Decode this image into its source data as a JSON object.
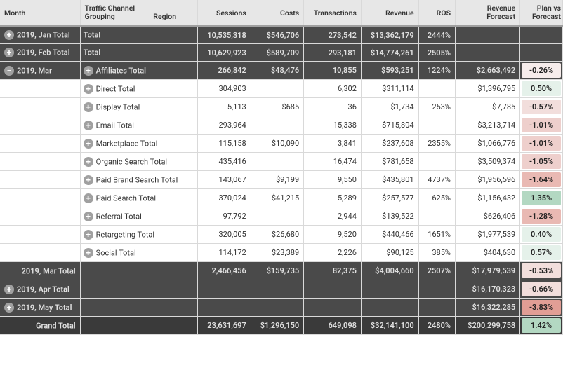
{
  "type": "table",
  "colors": {
    "header_bg": "#e7e7e7",
    "dark_row_bg": "#4a4a4a",
    "dark_row_text": "#e0e0e0",
    "grand_row_bg": "#3a3a3a",
    "border": "#d9d9d9",
    "icon_bg": "#a0a0a0"
  },
  "planfc_palette": {
    "neg_weakest": "#f6eceb",
    "neg_weak": "#f2dedc",
    "neg_med": "#eecfcc",
    "neg_strong": "#e9b9b3",
    "neg_strongest": "#e19e95",
    "pos_weak": "#e5f1ea",
    "pos_med": "#c9e3d3",
    "pos_strong": "#b3d8c2"
  },
  "headers": {
    "month": "Month",
    "channel": "Traffic Channel Grouping",
    "region": "Region",
    "sessions": "Sessions",
    "costs": "Costs",
    "transactions": "Transactions",
    "revenue": "Revenue",
    "ros": "ROS",
    "rev_forecast": "Revenue Forecast",
    "plan_forecast": "Plan vs Forecast"
  },
  "rows": [
    {
      "kind": "dark",
      "icon": "plus",
      "month": "2019, Jan   Total",
      "channel": "Total",
      "sessions": "10,535,318",
      "costs": "$546,706",
      "transactions": "273,542",
      "revenue": "$13,362,179",
      "ros": "2444%",
      "rev_fc": "",
      "plan_fc": "",
      "plan_color": ""
    },
    {
      "kind": "dark",
      "icon": "plus",
      "month": "2019, Feb   Total",
      "channel": "Total",
      "sessions": "10,629,923",
      "costs": "$589,709",
      "transactions": "293,181",
      "revenue": "$14,774,261",
      "ros": "2505%",
      "rev_fc": "",
      "plan_fc": "",
      "plan_color": ""
    },
    {
      "kind": "dark",
      "icon": "minus",
      "month": "2019, Mar",
      "channel_icon": "plus",
      "channel": "Affiliates Total",
      "sessions": "266,842",
      "costs": "$48,476",
      "transactions": "10,855",
      "revenue": "$593,251",
      "ros": "1224%",
      "rev_fc": "$2,663,492",
      "plan_fc": "-0.26%",
      "plan_color": "neg_weakest"
    },
    {
      "kind": "detail",
      "month": "",
      "channel_icon": "plus",
      "channel": "Direct Total",
      "sessions": "304,903",
      "costs": "",
      "transactions": "6,302",
      "revenue": "$311,114",
      "ros": "",
      "rev_fc": "$1,396,795",
      "plan_fc": "0.50%",
      "plan_color": "pos_weak"
    },
    {
      "kind": "detail",
      "month": "",
      "channel_icon": "plus",
      "channel": "Display Total",
      "sessions": "5,113",
      "costs": "$685",
      "transactions": "36",
      "revenue": "$1,734",
      "ros": "253%",
      "rev_fc": "$7,785",
      "plan_fc": "-0.57%",
      "plan_color": "neg_weak"
    },
    {
      "kind": "detail",
      "month": "",
      "channel_icon": "plus",
      "channel": "Email Total",
      "sessions": "293,964",
      "costs": "",
      "transactions": "15,338",
      "revenue": "$715,804",
      "ros": "",
      "rev_fc": "$3,213,714",
      "plan_fc": "-1.01%",
      "plan_color": "neg_med"
    },
    {
      "kind": "detail",
      "month": "",
      "channel_icon": "plus",
      "channel": "Marketplace Total",
      "sessions": "115,158",
      "costs": "$10,090",
      "transactions": "3,841",
      "revenue": "$237,608",
      "ros": "2355%",
      "rev_fc": "$1,066,776",
      "plan_fc": "-1.01%",
      "plan_color": "neg_med"
    },
    {
      "kind": "detail",
      "month": "",
      "channel_icon": "plus",
      "channel": "Organic Search Total",
      "sessions": "435,416",
      "costs": "",
      "transactions": "16,474",
      "revenue": "$781,658",
      "ros": "",
      "rev_fc": "$3,509,374",
      "plan_fc": "-1.05%",
      "plan_color": "neg_med"
    },
    {
      "kind": "detail",
      "month": "",
      "channel_icon": "plus",
      "channel": "Paid Brand Search Total",
      "sessions": "143,067",
      "costs": "$9,199",
      "transactions": "9,550",
      "revenue": "$435,801",
      "ros": "4737%",
      "rev_fc": "$1,956,596",
      "plan_fc": "-1.64%",
      "plan_color": "neg_strong"
    },
    {
      "kind": "detail",
      "month": "",
      "channel_icon": "plus",
      "channel": "Paid Search Total",
      "sessions": "370,024",
      "costs": "$41,215",
      "transactions": "5,289",
      "revenue": "$257,577",
      "ros": "625%",
      "rev_fc": "$1,156,432",
      "plan_fc": "1.35%",
      "plan_color": "pos_strong"
    },
    {
      "kind": "detail",
      "month": "",
      "channel_icon": "plus",
      "channel": "Referral Total",
      "sessions": "97,792",
      "costs": "",
      "transactions": "2,944",
      "revenue": "$139,522",
      "ros": "",
      "rev_fc": "$626,406",
      "plan_fc": "-1.28%",
      "plan_color": "neg_strong"
    },
    {
      "kind": "detail",
      "month": "",
      "channel_icon": "plus",
      "channel": "Retargeting Total",
      "sessions": "320,005",
      "costs": "$26,680",
      "transactions": "9,520",
      "revenue": "$440,466",
      "ros": "1651%",
      "rev_fc": "$1,977,539",
      "plan_fc": "0.40%",
      "plan_color": "pos_weak"
    },
    {
      "kind": "detail",
      "month": "",
      "channel_icon": "plus",
      "channel": "Social Total",
      "sessions": "114,172",
      "costs": "$23,389",
      "transactions": "2,226",
      "revenue": "$90,125",
      "ros": "385%",
      "rev_fc": "$404,630",
      "plan_fc": "0.57%",
      "plan_color": "pos_weak"
    },
    {
      "kind": "dark",
      "icon": "",
      "month": "2019, Mar   Total",
      "channel": "",
      "sessions": "2,466,456",
      "costs": "$159,735",
      "transactions": "82,375",
      "revenue": "$4,004,660",
      "ros": "2507%",
      "rev_fc": "$17,979,539",
      "plan_fc": "-0.53%",
      "plan_color": "neg_weak"
    },
    {
      "kind": "dark",
      "icon": "plus",
      "month": "2019, Apr   Total",
      "channel": "",
      "sessions": "",
      "costs": "",
      "transactions": "",
      "revenue": "",
      "ros": "",
      "rev_fc": "$16,170,323",
      "plan_fc": "-0.66%",
      "plan_color": "neg_weak"
    },
    {
      "kind": "dark",
      "icon": "plus",
      "month": "2019, May   Total",
      "channel": "",
      "sessions": "",
      "costs": "",
      "transactions": "",
      "revenue": "",
      "ros": "",
      "rev_fc": "$16,322,285",
      "plan_fc": "-3.83%",
      "plan_color": "neg_strongest"
    },
    {
      "kind": "dark grand",
      "icon": "",
      "month": "Grand Total",
      "channel": "",
      "sessions": "23,631,697",
      "costs": "$1,296,150",
      "transactions": "649,098",
      "revenue": "$32,141,100",
      "ros": "2480%",
      "rev_fc": "$200,299,758",
      "plan_fc": "1.42%",
      "plan_color": "pos_strong"
    }
  ]
}
